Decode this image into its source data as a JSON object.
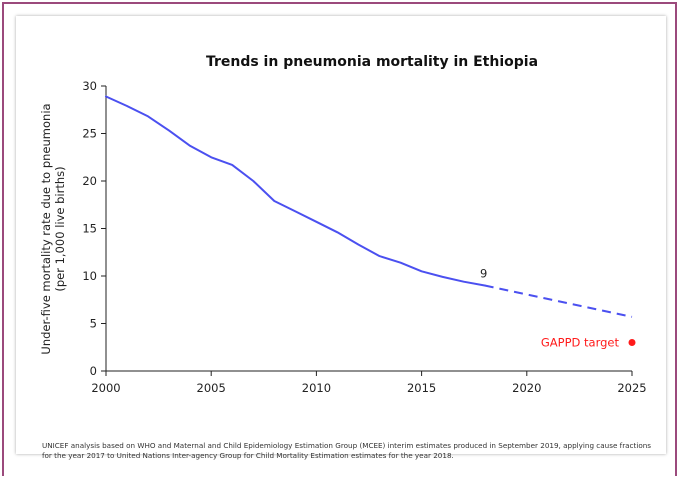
{
  "chart_data": {
    "type": "line",
    "title": "Trends in pneumonia mortality in Ethiopia",
    "ylabel_line1": "Under-five mortality rate due to pneumonia",
    "ylabel_line2": "(per 1,000 live births)",
    "xlabel": "",
    "xlim": [
      2000,
      2025
    ],
    "ylim": [
      0,
      30
    ],
    "x_ticks": [
      "2000",
      "2005",
      "2010",
      "2015",
      "2020",
      "2025"
    ],
    "y_ticks": [
      "0",
      "5",
      "10",
      "15",
      "20",
      "25",
      "30"
    ],
    "grid": false,
    "series": [
      {
        "style": "solid",
        "color": "#4b50f0",
        "x": [
          2000,
          2001,
          2002,
          2003,
          2004,
          2005,
          2006,
          2007,
          2008,
          2009,
          2010,
          2011,
          2012,
          2013,
          2014,
          2015,
          2016,
          2017,
          2018
        ],
        "values": [
          28.9,
          27.9,
          26.8,
          25.3,
          23.7,
          22.5,
          21.7,
          20.0,
          17.9,
          16.8,
          15.7,
          14.6,
          13.3,
          12.1,
          11.4,
          10.5,
          9.9,
          9.4,
          9.0
        ]
      },
      {
        "style": "dashed",
        "color": "#4b50f0",
        "x": [
          2018,
          2025
        ],
        "values": [
          9.0,
          5.7
        ]
      }
    ],
    "annotations": [
      {
        "text": "9",
        "x": 2018,
        "y": 9.0
      }
    ],
    "target": {
      "label": "GAPPD target",
      "x": 2025,
      "y": 3,
      "color": "#ff1a1a"
    }
  },
  "source_note": "UNICEF analysis based on WHO and Maternal and Child Epidemiology Estimation Group (MCEE) interim estimates produced in September 2019, applying cause fractions for the year 2017 to United Nations Inter-agency Group for Child Mortality Estimation estimates for the year 2018."
}
